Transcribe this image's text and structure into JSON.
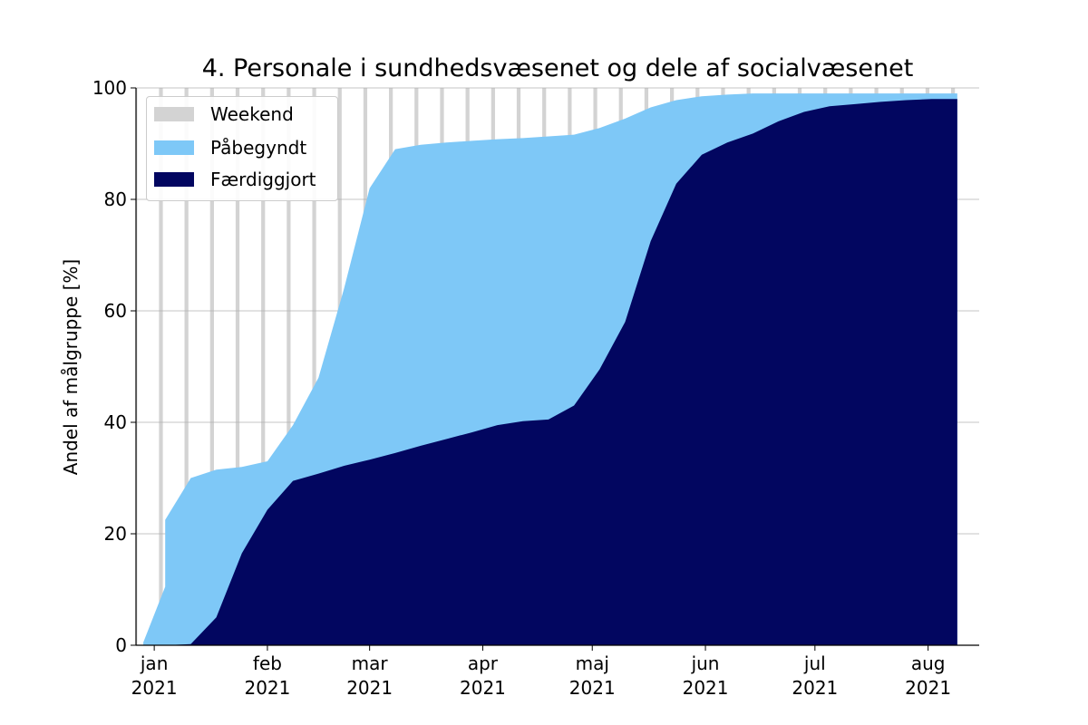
{
  "chart_data": {
    "type": "area",
    "title": "4. Personale i sundhedsvæsenet og dele af socialvæsenet",
    "xlabel": "",
    "ylabel": "Andel af målgruppe [%]",
    "ylim": [
      0,
      100
    ],
    "yticks": [
      0,
      20,
      40,
      60,
      80,
      100
    ],
    "xlim": [
      "2020-12-27",
      "2021-08-15"
    ],
    "xticks": [
      {
        "date": "2021-01-01",
        "month": "jan",
        "year": "2021"
      },
      {
        "date": "2021-02-01",
        "month": "feb",
        "year": "2021"
      },
      {
        "date": "2021-03-01",
        "month": "mar",
        "year": "2021"
      },
      {
        "date": "2021-04-01",
        "month": "apr",
        "year": "2021"
      },
      {
        "date": "2021-05-01",
        "month": "maj",
        "year": "2021"
      },
      {
        "date": "2021-06-01",
        "month": "jun",
        "year": "2021"
      },
      {
        "date": "2021-07-01",
        "month": "jul",
        "year": "2021"
      },
      {
        "date": "2021-08-01",
        "month": "aug",
        "year": "2021"
      }
    ],
    "grid": "horizontal",
    "legend_position": "top-left",
    "weekend_label": "Weekend",
    "weekend_color": "#d3d3d3",
    "weekends": [
      "2020-12-27",
      "2021-01-03",
      "2021-01-10",
      "2021-01-17",
      "2021-01-24",
      "2021-01-31",
      "2021-02-07",
      "2021-02-14",
      "2021-02-21",
      "2021-02-28",
      "2021-03-07",
      "2021-03-14",
      "2021-03-21",
      "2021-03-28",
      "2021-04-04",
      "2021-04-11",
      "2021-04-18",
      "2021-04-25",
      "2021-05-02",
      "2021-05-09",
      "2021-05-16",
      "2021-05-23",
      "2021-05-30",
      "2021-06-06",
      "2021-06-13",
      "2021-06-20",
      "2021-06-27",
      "2021-07-04",
      "2021-07-11",
      "2021-07-18",
      "2021-07-25",
      "2021-08-01",
      "2021-08-08"
    ],
    "series": [
      {
        "name": "Påbegyndt",
        "color": "#7ec8f7",
        "points": [
          [
            "2020-12-29",
            0.5
          ],
          [
            "2021-01-04",
            10.5
          ],
          [
            "2021-01-04",
            22.5
          ],
          [
            "2021-01-11",
            30
          ],
          [
            "2021-01-18",
            31.5
          ],
          [
            "2021-01-25",
            32
          ],
          [
            "2021-02-01",
            33
          ],
          [
            "2021-02-08",
            39.5
          ],
          [
            "2021-02-15",
            48
          ],
          [
            "2021-02-22",
            64
          ],
          [
            "2021-03-01",
            82
          ],
          [
            "2021-03-08",
            89
          ],
          [
            "2021-03-15",
            89.8
          ],
          [
            "2021-03-22",
            90.2
          ],
          [
            "2021-03-29",
            90.5
          ],
          [
            "2021-04-05",
            90.8
          ],
          [
            "2021-04-12",
            91
          ],
          [
            "2021-04-19",
            91.3
          ],
          [
            "2021-04-26",
            91.6
          ],
          [
            "2021-05-03",
            92.8
          ],
          [
            "2021-05-10",
            94.5
          ],
          [
            "2021-05-17",
            96.5
          ],
          [
            "2021-05-24",
            97.8
          ],
          [
            "2021-05-31",
            98.5
          ],
          [
            "2021-06-07",
            98.8
          ],
          [
            "2021-06-14",
            99
          ],
          [
            "2021-06-21",
            99
          ],
          [
            "2021-06-28",
            99
          ],
          [
            "2021-07-05",
            99
          ],
          [
            "2021-07-12",
            99
          ],
          [
            "2021-07-19",
            99
          ],
          [
            "2021-07-26",
            99
          ],
          [
            "2021-08-02",
            99
          ],
          [
            "2021-08-09",
            99
          ]
        ]
      },
      {
        "name": "Færdiggjort",
        "color": "#020660",
        "points": [
          [
            "2020-12-29",
            0
          ],
          [
            "2021-01-04",
            0
          ],
          [
            "2021-01-11",
            0.2
          ],
          [
            "2021-01-18",
            5
          ],
          [
            "2021-01-25",
            16.5
          ],
          [
            "2021-02-01",
            24.3
          ],
          [
            "2021-02-08",
            29.5
          ],
          [
            "2021-02-15",
            30.8
          ],
          [
            "2021-02-22",
            32.2
          ],
          [
            "2021-03-01",
            33.3
          ],
          [
            "2021-03-08",
            34.5
          ],
          [
            "2021-03-15",
            35.8
          ],
          [
            "2021-03-22",
            37
          ],
          [
            "2021-03-29",
            38.2
          ],
          [
            "2021-04-05",
            39.5
          ],
          [
            "2021-04-12",
            40.2
          ],
          [
            "2021-04-19",
            40.5
          ],
          [
            "2021-04-26",
            43
          ],
          [
            "2021-05-03",
            49.5
          ],
          [
            "2021-05-10",
            58
          ],
          [
            "2021-05-17",
            72.5
          ],
          [
            "2021-05-24",
            82.8
          ],
          [
            "2021-05-31",
            88
          ],
          [
            "2021-06-07",
            90.2
          ],
          [
            "2021-06-14",
            91.8
          ],
          [
            "2021-06-21",
            94
          ],
          [
            "2021-06-28",
            95.7
          ],
          [
            "2021-07-05",
            96.7
          ],
          [
            "2021-07-12",
            97.1
          ],
          [
            "2021-07-19",
            97.5
          ],
          [
            "2021-07-26",
            97.8
          ],
          [
            "2021-08-02",
            98
          ],
          [
            "2021-08-09",
            98
          ]
        ]
      }
    ]
  }
}
